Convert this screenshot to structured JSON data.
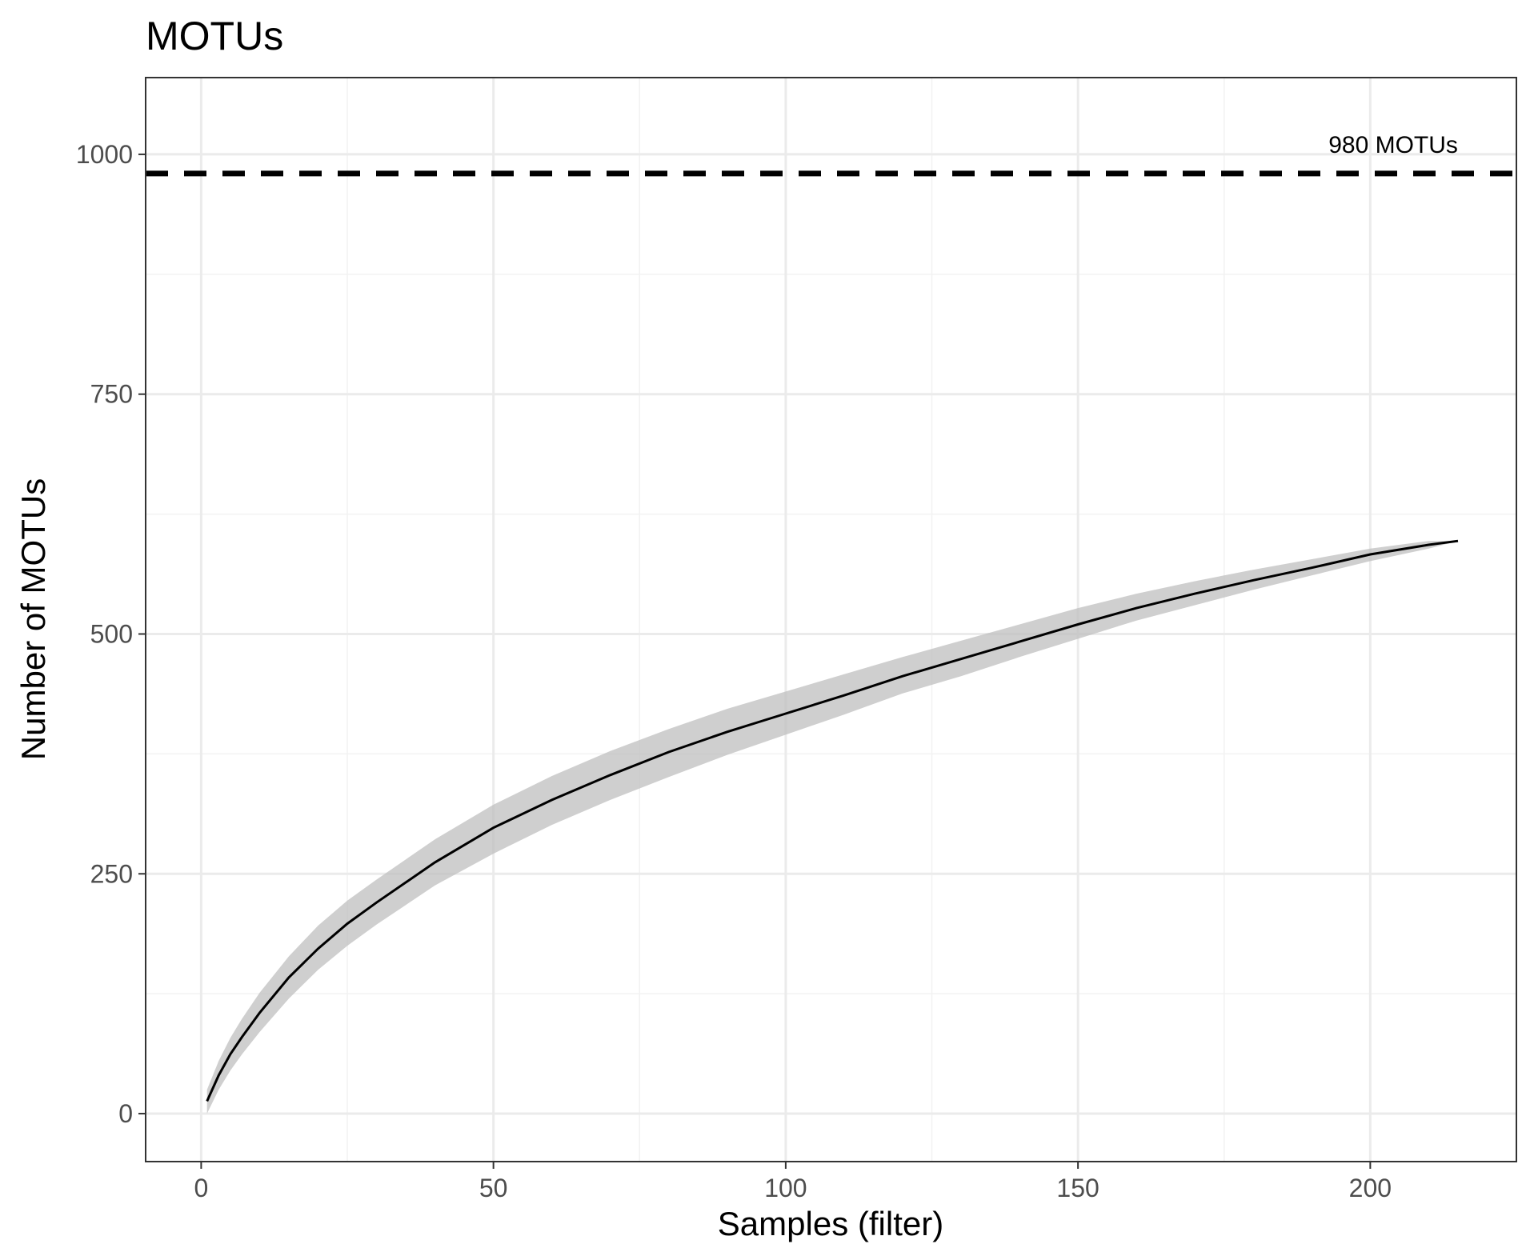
{
  "chart_data": {
    "type": "line",
    "title": "MOTUs",
    "xlabel": "Samples (filter)",
    "ylabel": "Number of MOTUs",
    "xlim": [
      -9.5,
      225
    ],
    "ylim": [
      -50,
      1080
    ],
    "x_ticks": [
      0,
      50,
      100,
      150,
      200
    ],
    "x_minor_ticks": [
      25,
      75,
      125,
      175
    ],
    "y_ticks": [
      0,
      250,
      500,
      750,
      1000
    ],
    "y_minor_ticks": [
      125,
      375,
      625,
      875
    ],
    "grid": true,
    "reference_line": {
      "y": 980,
      "style": "dashed",
      "label": "980 MOTUs"
    },
    "series": [
      {
        "x": [
          1,
          3,
          5,
          7,
          10,
          15,
          20,
          25,
          30,
          40,
          50,
          60,
          70,
          80,
          90,
          100,
          110,
          120,
          130,
          140,
          150,
          160,
          170,
          180,
          190,
          200,
          210,
          215
        ],
        "y": [
          13,
          40,
          62,
          80,
          105,
          142,
          172,
          198,
          220,
          262,
          298,
          327,
          353,
          377,
          398,
          417,
          436,
          456,
          474,
          492,
          510,
          527,
          542,
          556,
          569,
          583,
          593,
          597
        ],
        "lower": [
          0,
          25,
          45,
          62,
          85,
          120,
          150,
          175,
          197,
          238,
          271,
          301,
          327,
          351,
          374,
          395,
          416,
          438,
          456,
          476,
          495,
          514,
          530,
          546,
          561,
          576,
          589,
          597
        ],
        "upper": [
          25,
          55,
          79,
          99,
          126,
          164,
          196,
          222,
          244,
          286,
          322,
          352,
          378,
          401,
          422,
          440,
          458,
          476,
          493,
          510,
          527,
          542,
          555,
          567,
          578,
          589,
          597,
          597
        ],
        "color": "#000000",
        "band_color": "#bfbfbf"
      }
    ]
  }
}
